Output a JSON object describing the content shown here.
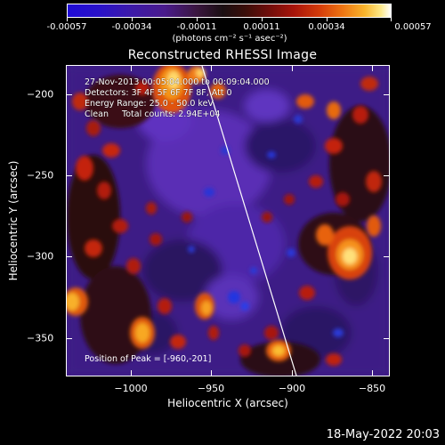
{
  "colorbar": {
    "tick_labels": [
      "-0.00057",
      "-0.00034",
      "-0.00011",
      "0.00011",
      "0.00034",
      "0.00057"
    ],
    "units_label": "(photons cm⁻² s⁻¹ asec⁻²)"
  },
  "title": "Reconstructed RHESSI Image",
  "info": {
    "time_range": "27-Nov-2013 00:05:04.000 to 00:09:04.000",
    "detectors": "Detectors: 3F 4F 5F 6F 7F 8F, Att 0",
    "energy_range": "Energy Range: 25.0 - 50.0 keV",
    "clean_counts": "Clean     Total counts: 2.94E+04",
    "peak_position": "Position of Peak = [-960,-201]"
  },
  "axes": {
    "x_label": "Heliocentric X (arcsec)",
    "y_label": "Heliocentric Y (arcsec)",
    "x_ticks": [
      "−1000",
      "−950",
      "−900",
      "−850"
    ],
    "y_ticks": [
      "−200",
      "−250",
      "−300",
      "−350"
    ],
    "x_range": [
      -1042,
      -842
    ],
    "y_range": [
      -372,
      -182
    ]
  },
  "timestamp": "18-May-2022 20:03",
  "colors": {
    "background_purple": "#3d1b86",
    "limb_line": "#ffffff"
  }
}
